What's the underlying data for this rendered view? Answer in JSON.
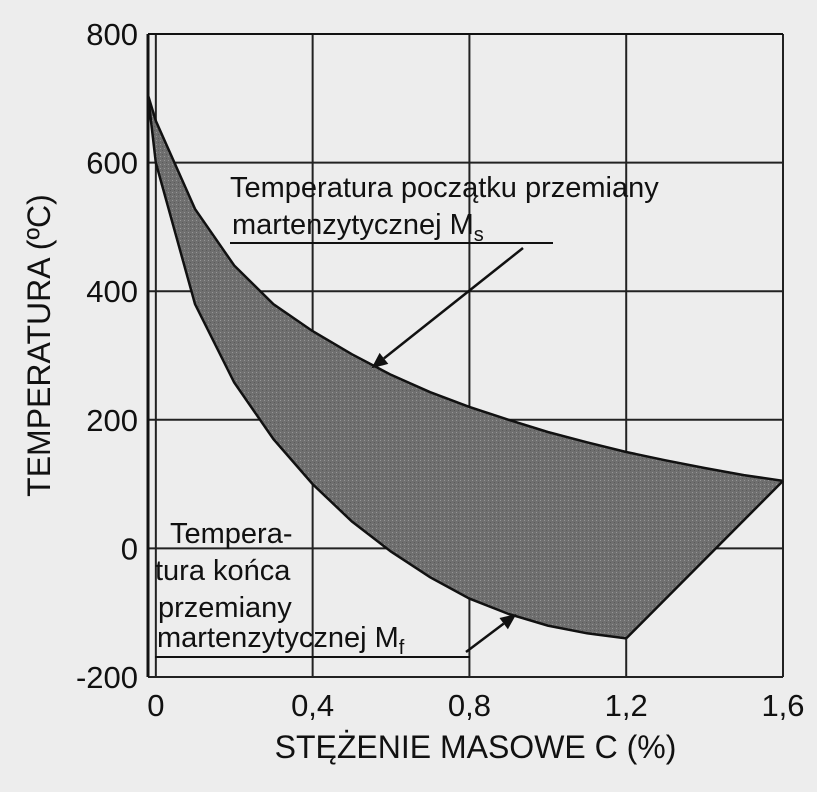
{
  "chart_data": {
    "type": "area",
    "xlabel": "STĘŻENIE MASOWE C (%)",
    "ylabel": "TEMPERATURA  (ºC)",
    "xlim": [
      -0.02,
      1.6
    ],
    "ylim": [
      -200,
      800
    ],
    "x_ticks": [
      "0",
      "0,4",
      "0,8",
      "1,2",
      "1,6"
    ],
    "y_ticks": [
      "800",
      "600",
      "400",
      "200",
      "0",
      "-200"
    ],
    "grid": true,
    "series": [
      {
        "name": "Temperatura początku przemiany martenzytycznej Ms",
        "x": [
          -0.02,
          0.0,
          0.1,
          0.2,
          0.3,
          0.4,
          0.5,
          0.6,
          0.7,
          0.8,
          0.9,
          1.0,
          1.1,
          1.2,
          1.3,
          1.4,
          1.5,
          1.6
        ],
        "y": [
          705,
          665,
          528,
          440,
          380,
          338,
          302,
          270,
          243,
          220,
          200,
          181,
          165,
          150,
          137,
          125,
          114,
          105
        ]
      },
      {
        "name": "Temperatura końca przemiany martenzytycznej Mf",
        "x": [
          -0.02,
          0.0,
          0.1,
          0.2,
          0.3,
          0.4,
          0.5,
          0.6,
          0.7,
          0.8,
          0.9,
          1.0,
          1.1,
          1.2
        ],
        "y": [
          705,
          600,
          380,
          258,
          170,
          100,
          42,
          -5,
          -45,
          -78,
          -102,
          -120,
          -132,
          -140
        ]
      }
    ],
    "closing_segment": {
      "x": [
        1.2,
        1.6
      ],
      "y": [
        -140,
        105
      ]
    },
    "annotations": [
      {
        "id": "ms",
        "lines": [
          "Temperatura początku przemiany",
          "martenzytycznej M",
          "s"
        ],
        "points_to": {
          "x": 0.55,
          "y": 280
        }
      },
      {
        "id": "mf",
        "lines": [
          "Tempera-",
          "tura końca",
          "przemiany",
          "martenzytycznej M",
          "f"
        ],
        "points_to": {
          "x": 0.92,
          "y": -102
        }
      }
    ],
    "colors": {
      "band_fill": "#7c7c7c",
      "line": "#111111",
      "grid": "#222222"
    }
  }
}
